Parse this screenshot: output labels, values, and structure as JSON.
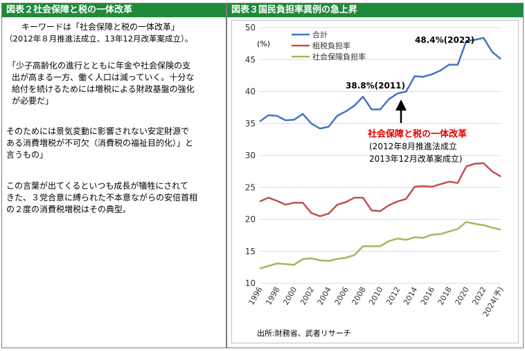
{
  "left": {
    "header": "図表２社会保障と税の一体改革",
    "keyword_line1": "キーワードは「社会保障と税の一体改革」",
    "keyword_line2": "（2012年８月推進法成立、13年12月改革案成立）。",
    "quote": [
      "「少子高齢化の進行とともに年金や社会保険の支",
      "出が高まる一方、働く人口は減っていく。十分な",
      "給付を続けるためには増税による財政基盤の強化",
      "が必要だ」"
    ],
    "para2": [
      "そのためには景気変動に影響されない安定財源で",
      "ある消費増税が不可欠（消費税の福祉目的化）」と",
      "言うもの」"
    ],
    "para3": [
      "この言葉が出てくるといつも成長が犠牲にされて",
      "きた、３党合意に縛られた不本意ながらの安倍首相",
      "の２度の消費税増税はその典型。"
    ]
  },
  "right": {
    "header": "図表３国民負担率異例の急上昇",
    "source": "出所:財務省、武者リサーチ"
  },
  "chart_data": {
    "type": "line",
    "x": [
      "1996",
      "1997",
      "1998",
      "1999",
      "2000",
      "2001",
      "2002",
      "2003",
      "2004",
      "2005",
      "2006",
      "2007",
      "2008",
      "2009",
      "2010",
      "2011",
      "2012",
      "2013",
      "2014",
      "2015",
      "2016",
      "2017",
      "2018",
      "2019",
      "2020",
      "2021",
      "2022",
      "2023",
      "2024(予)"
    ],
    "x_tick_labels": [
      "1996",
      "1998",
      "2000",
      "2002",
      "2004",
      "2006",
      "2008",
      "2010",
      "2012",
      "2014",
      "2016",
      "2018",
      "2020",
      "2022",
      "2024(予)"
    ],
    "ylim": [
      10,
      50
    ],
    "y_ticks": [
      10,
      15,
      20,
      25,
      30,
      35,
      40,
      45,
      50
    ],
    "y_unit": "(%)",
    "grid": "horizontal",
    "legend_position": "top-left",
    "series": [
      {
        "name": "合計",
        "color": "#4472c4",
        "values": [
          35.3,
          36.3,
          36.2,
          35.5,
          35.6,
          36.5,
          35.0,
          34.2,
          34.5,
          36.2,
          36.9,
          37.8,
          39.2,
          37.2,
          37.2,
          38.8,
          39.7,
          40.0,
          42.4,
          42.3,
          42.7,
          43.3,
          44.2,
          44.2,
          47.9,
          48.1,
          48.4,
          46.2,
          45.1
        ]
      },
      {
        "name": "租税負担率",
        "color": "#c0504d",
        "values": [
          22.8,
          23.4,
          22.9,
          22.3,
          22.6,
          22.6,
          21.0,
          20.5,
          20.9,
          22.3,
          22.7,
          23.4,
          23.4,
          21.4,
          21.3,
          22.2,
          22.8,
          23.2,
          25.1,
          25.2,
          25.1,
          25.5,
          25.9,
          25.7,
          28.3,
          28.7,
          28.8,
          27.5,
          26.7
        ]
      },
      {
        "name": "社会保障負担率",
        "color": "#9bbb59",
        "values": [
          12.3,
          12.7,
          13.1,
          13.0,
          12.9,
          13.8,
          13.9,
          13.6,
          13.5,
          13.8,
          14.0,
          14.4,
          15.8,
          15.8,
          15.8,
          16.6,
          17.0,
          16.8,
          17.2,
          17.1,
          17.6,
          17.7,
          18.1,
          18.5,
          19.6,
          19.3,
          19.1,
          18.7,
          18.4
        ]
      }
    ],
    "annotations": {
      "label_2011": "38.8%(2011)",
      "label_2022": "48.4%(2022)",
      "reform_title": "社会保障と税の一体改革",
      "reform_line1": "(2012年8月推進法成立",
      "reform_line2": "2013年12月改革案成立)"
    }
  }
}
